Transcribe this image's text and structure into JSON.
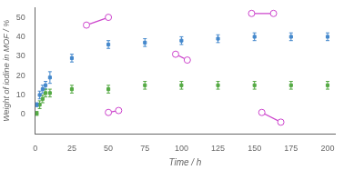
{
  "chart_data": {
    "type": "scatter",
    "xlabel": "Time / h",
    "ylabel": "Weight of iodine in MOF / %",
    "xlim": [
      0,
      205
    ],
    "ylim": [
      -10,
      55
    ],
    "xticks": [
      0,
      25,
      50,
      75,
      100,
      125,
      150,
      175,
      200
    ],
    "yticks": [
      0,
      10,
      20,
      30,
      40,
      50
    ],
    "grid": false,
    "series": [
      {
        "type": "scatter",
        "marker": "square",
        "color": "#4488cc",
        "x": [
          1,
          3,
          5,
          7,
          10,
          25,
          50,
          75,
          100,
          125,
          150,
          175,
          200
        ],
        "values": [
          5,
          10,
          13,
          15,
          19,
          29,
          36,
          37,
          38,
          39,
          40,
          40,
          40
        ],
        "yerr": [
          1,
          2,
          2,
          2,
          3,
          2,
          2,
          2,
          2,
          2,
          2,
          2,
          2
        ]
      },
      {
        "type": "scatter",
        "marker": "square",
        "color": "#55aa44",
        "x": [
          1,
          3,
          5,
          7,
          10,
          25,
          50,
          75,
          100,
          125,
          150,
          175,
          200
        ],
        "values": [
          0.5,
          5,
          8,
          11,
          11,
          13,
          13,
          15,
          15,
          15,
          15,
          15,
          15
        ],
        "yerr": [
          1,
          2,
          2,
          2,
          2,
          2,
          2,
          2,
          2,
          2,
          2,
          2,
          2
        ]
      },
      {
        "type": "line",
        "marker": "circle",
        "line_style": "solid",
        "color": "#cc44cc",
        "x": [
          35,
          50
        ],
        "values": [
          46,
          50
        ]
      },
      {
        "type": "line",
        "marker": "circle",
        "line_style": "solid",
        "color": "#cc44cc",
        "x": [
          50,
          57
        ],
        "values": [
          1,
          2
        ]
      },
      {
        "type": "line",
        "marker": "circle",
        "line_style": "solid",
        "color": "#cc44cc",
        "x": [
          96,
          104
        ],
        "values": [
          31,
          28
        ]
      },
      {
        "type": "line",
        "marker": "circle",
        "line_style": "solid",
        "color": "#cc44cc",
        "x": [
          148,
          163
        ],
        "values": [
          52,
          52
        ]
      },
      {
        "type": "line",
        "marker": "circle",
        "line_style": "solid",
        "color": "#cc44cc",
        "x": [
          155,
          168
        ],
        "values": [
          1,
          -4
        ]
      }
    ]
  }
}
